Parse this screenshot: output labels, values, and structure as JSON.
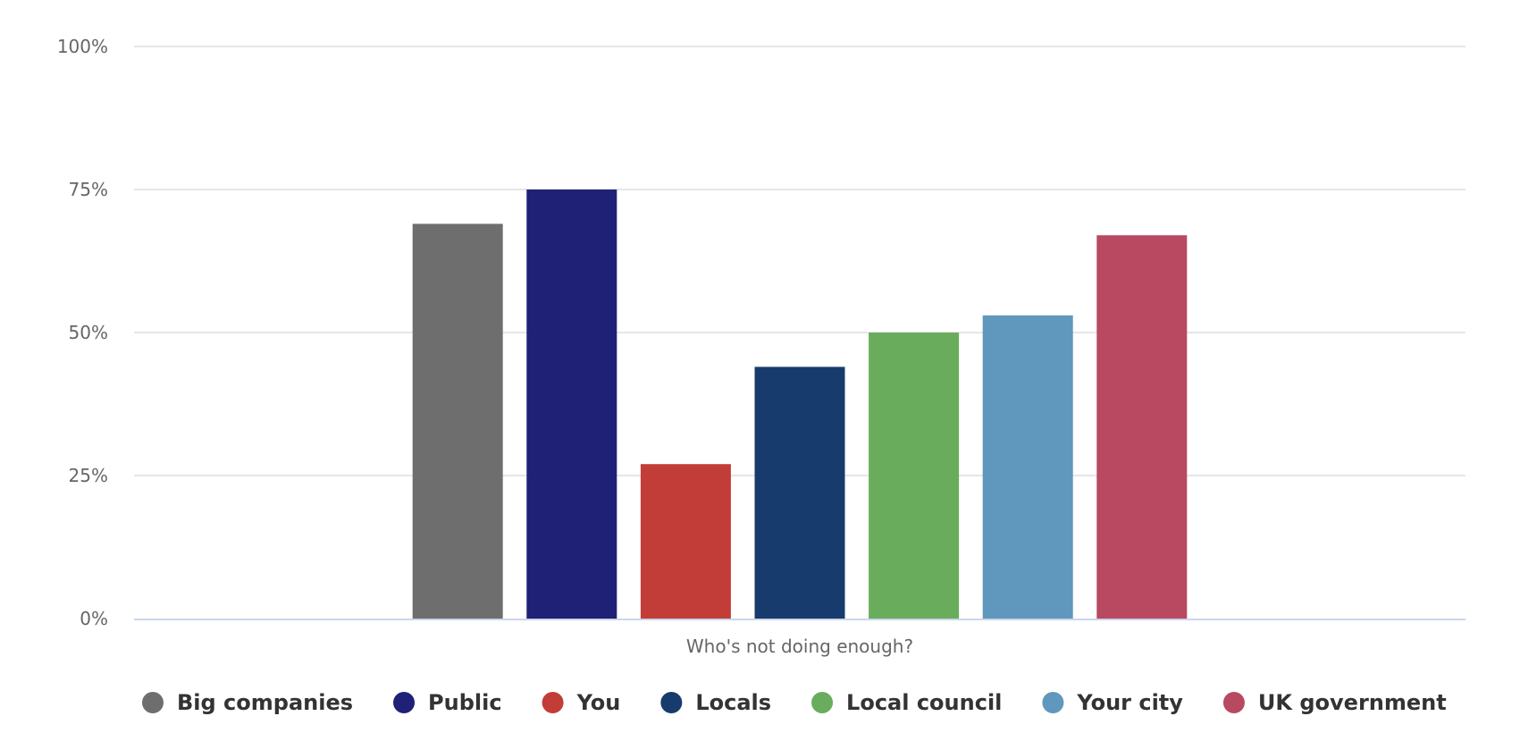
{
  "chart_data": {
    "type": "bar",
    "title": "",
    "xlabel": "Who's not doing enough?",
    "ylabel": "",
    "ylim": [
      0,
      100
    ],
    "y_ticks": [
      0,
      25,
      50,
      75,
      100
    ],
    "y_tick_suffix": "%",
    "grid": true,
    "legend_position": "bottom",
    "categories": [
      "Who's not doing enough?"
    ],
    "series": [
      {
        "name": "Big companies",
        "color": "#6e6e6e",
        "values": [
          69
        ]
      },
      {
        "name": "Public",
        "color": "#1f2177",
        "values": [
          75
        ]
      },
      {
        "name": "You",
        "color": "#c33d38",
        "values": [
          27
        ]
      },
      {
        "name": "Locals",
        "color": "#183b6d",
        "values": [
          44
        ]
      },
      {
        "name": "Local council",
        "color": "#69ad5c",
        "values": [
          50
        ]
      },
      {
        "name": "Your city",
        "color": "#5f97bd",
        "values": [
          53
        ]
      },
      {
        "name": "UK government",
        "color": "#b84960",
        "values": [
          67
        ]
      }
    ]
  }
}
